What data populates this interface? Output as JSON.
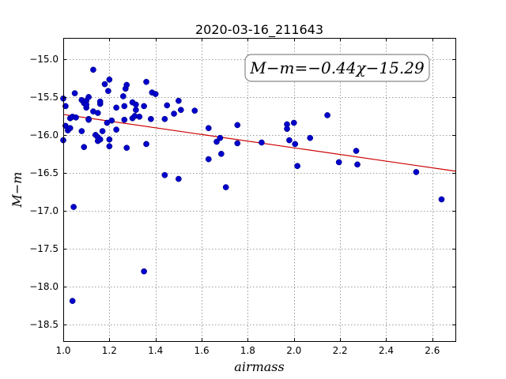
{
  "chart_data": {
    "type": "scatter",
    "title": "2020-03-16_211643",
    "xlabel": "airmass",
    "ylabel": "M−m",
    "xlim": [
      1.0,
      2.7
    ],
    "ylim": [
      -18.72,
      -14.72
    ],
    "y_inverted": true,
    "grid": true,
    "xticks": [
      1.0,
      1.2,
      1.4,
      1.6,
      1.8,
      2.0,
      2.2,
      2.4,
      2.6
    ],
    "xtick_labels": [
      "1.0",
      "1.2",
      "1.4",
      "1.6",
      "1.8",
      "2.0",
      "2.2",
      "2.4",
      "2.6"
    ],
    "yticks": [
      -15.0,
      -15.5,
      -16.0,
      -16.5,
      -17.0,
      -17.5,
      -18.0,
      -18.5
    ],
    "ytick_labels": [
      "−15.0",
      "−15.5",
      "−16.0",
      "−16.5",
      "−17.0",
      "−17.5",
      "−18.0",
      "−18.5"
    ],
    "annotation": "M−m=−0.44χ−15.29",
    "fit": {
      "slope": -0.44,
      "intercept": -15.29,
      "color": "#cc0000"
    },
    "point_color": "#0000cc",
    "points": [
      [
        1.0,
        -15.52
      ],
      [
        1.0,
        -16.07
      ],
      [
        1.01,
        -15.62
      ],
      [
        1.01,
        -15.88
      ],
      [
        1.02,
        -15.94
      ],
      [
        1.03,
        -15.91
      ],
      [
        1.03,
        -15.78
      ],
      [
        1.04,
        -15.76
      ],
      [
        1.04,
        -18.19
      ],
      [
        1.045,
        -16.95
      ],
      [
        1.05,
        -15.45
      ],
      [
        1.055,
        -15.77
      ],
      [
        1.08,
        -15.95
      ],
      [
        1.08,
        -15.54
      ],
      [
        1.09,
        -15.58
      ],
      [
        1.09,
        -16.16
      ],
      [
        1.1,
        -15.55
      ],
      [
        1.1,
        -15.64
      ],
      [
        1.1,
        -15.6
      ],
      [
        1.11,
        -15.5
      ],
      [
        1.11,
        -15.79
      ],
      [
        1.11,
        -15.8
      ],
      [
        1.13,
        -15.14
      ],
      [
        1.13,
        -15.69
      ],
      [
        1.14,
        -16.0
      ],
      [
        1.15,
        -15.71
      ],
      [
        1.15,
        -16.08
      ],
      [
        1.15,
        -16.03
      ],
      [
        1.16,
        -15.59
      ],
      [
        1.16,
        -15.56
      ],
      [
        1.16,
        -16.06
      ],
      [
        1.17,
        -15.95
      ],
      [
        1.18,
        -15.33
      ],
      [
        1.19,
        -15.84
      ],
      [
        1.195,
        -15.42
      ],
      [
        1.2,
        -15.27
      ],
      [
        1.2,
        -16.06
      ],
      [
        1.2,
        -16.15
      ],
      [
        1.21,
        -15.81
      ],
      [
        1.23,
        -15.93
      ],
      [
        1.23,
        -15.64
      ],
      [
        1.26,
        -15.49
      ],
      [
        1.265,
        -15.8
      ],
      [
        1.265,
        -15.62
      ],
      [
        1.27,
        -15.39
      ],
      [
        1.275,
        -15.34
      ],
      [
        1.275,
        -16.17
      ],
      [
        1.3,
        -15.78
      ],
      [
        1.3,
        -15.57
      ],
      [
        1.31,
        -15.75
      ],
      [
        1.315,
        -15.67
      ],
      [
        1.315,
        -15.6
      ],
      [
        1.33,
        -15.76
      ],
      [
        1.35,
        -17.8
      ],
      [
        1.35,
        -15.62
      ],
      [
        1.36,
        -15.3
      ],
      [
        1.36,
        -16.12
      ],
      [
        1.38,
        -15.79
      ],
      [
        1.385,
        -15.44
      ],
      [
        1.4,
        -15.46
      ],
      [
        1.44,
        -15.79
      ],
      [
        1.44,
        -16.53
      ],
      [
        1.45,
        -15.61
      ],
      [
        1.48,
        -15.72
      ],
      [
        1.5,
        -16.58
      ],
      [
        1.5,
        -15.55
      ],
      [
        1.51,
        -15.67
      ],
      [
        1.57,
        -15.68
      ],
      [
        1.63,
        -16.32
      ],
      [
        1.63,
        -15.91
      ],
      [
        1.665,
        -16.09
      ],
      [
        1.68,
        -16.04
      ],
      [
        1.685,
        -16.25
      ],
      [
        1.705,
        -16.69
      ],
      [
        1.755,
        -15.87
      ],
      [
        1.755,
        -16.11
      ],
      [
        1.86,
        -16.1
      ],
      [
        1.97,
        -15.86
      ],
      [
        1.97,
        -15.92
      ],
      [
        1.98,
        -16.07
      ],
      [
        2.0,
        -15.84
      ],
      [
        2.005,
        -16.12
      ],
      [
        2.015,
        -16.41
      ],
      [
        2.07,
        -16.04
      ],
      [
        2.145,
        -15.74
      ],
      [
        2.195,
        -16.36
      ],
      [
        2.27,
        -16.21
      ],
      [
        2.275,
        -16.39
      ],
      [
        2.53,
        -16.49
      ],
      [
        2.64,
        -16.85
      ]
    ]
  }
}
